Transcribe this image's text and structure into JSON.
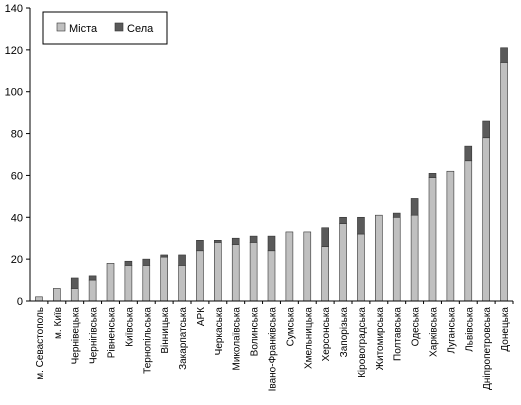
{
  "chart_data": {
    "type": "bar",
    "stacked": true,
    "ylim": [
      0,
      140
    ],
    "yticks": [
      0,
      20,
      40,
      60,
      80,
      100,
      120,
      140
    ],
    "grid": false,
    "legend_position": "top-left",
    "categories": [
      "м. Севастополь",
      "м. Київ",
      "Чернівецька",
      "Чернігівська",
      "Рівненська",
      "Київська",
      "Тернопільська",
      "Вінницька",
      "Закарпатська",
      "АРК",
      "Черкаська",
      "Миколаївська",
      "Волинська",
      "Івано-Франківська",
      "Сумська",
      "Хмельницька",
      "Херсонська",
      "Запорізька",
      "Кіровоградська",
      "Житомирська",
      "Полтавська",
      "Одеська",
      "Харківська",
      "Луганська",
      "Львівська",
      "Дніпропетровська",
      "Донецька"
    ],
    "series": [
      {
        "name": "Міста",
        "color": "#c0c0c0",
        "values": [
          2,
          6,
          6,
          10,
          18,
          17,
          17,
          21,
          17,
          24,
          28,
          27,
          28,
          24,
          33,
          33,
          26,
          37,
          32,
          41,
          40,
          41,
          59,
          62,
          67,
          78,
          114
        ]
      },
      {
        "name": "Села",
        "color": "#5a5a5a",
        "values": [
          0,
          0,
          5,
          2,
          0,
          2,
          3,
          1,
          5,
          5,
          1,
          3,
          3,
          7,
          0,
          0,
          9,
          3,
          8,
          0,
          2,
          8,
          2,
          0,
          7,
          8,
          7
        ]
      }
    ]
  }
}
